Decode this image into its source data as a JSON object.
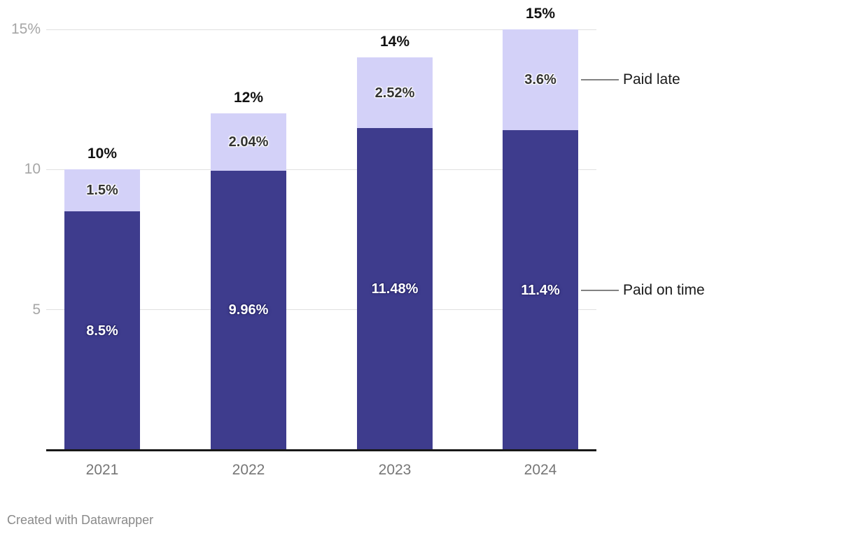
{
  "chart_data": {
    "type": "bar",
    "stacked": true,
    "title": "",
    "xlabel": "",
    "ylabel": "",
    "categories": [
      "2021",
      "2022",
      "2023",
      "2024"
    ],
    "series": [
      {
        "name": "Paid on time",
        "color": "#3E3C8D",
        "values": [
          8.5,
          9.96,
          11.48,
          11.4
        ],
        "labels": [
          "8.5%",
          "9.96%",
          "11.48%",
          "11.4%"
        ],
        "label_style": "on-dark"
      },
      {
        "name": "Paid late",
        "color": "#D3D1F8",
        "values": [
          1.5,
          2.04,
          2.52,
          3.6
        ],
        "labels": [
          "1.5%",
          "2.04%",
          "2.52%",
          "3.6%"
        ],
        "label_style": "on-light"
      }
    ],
    "totals": [
      "10%",
      "12%",
      "14%",
      "15%"
    ],
    "y_ticks": [
      {
        "value": 5,
        "label": "5"
      },
      {
        "value": 10,
        "label": "10"
      },
      {
        "value": 15,
        "label": "15%"
      }
    ],
    "ylim": [
      0,
      15
    ],
    "grid": true,
    "legend_position": "right-annotations",
    "annotations": [
      {
        "label": "Paid late",
        "series_index": 1
      },
      {
        "label": "Paid on time",
        "series_index": 0
      }
    ]
  },
  "colors": {
    "paid_on_time": "#3E3C8D",
    "paid_late": "#D3D1F8",
    "grid": "#E0E0E0",
    "axis": "#181818",
    "tick_text": "#A6A6A6",
    "x_label_text": "#767676",
    "total_text": "#111111",
    "annotation_line": "#828282",
    "annotation_text": "#1A1A1A",
    "credit_text": "#8A8A8A"
  },
  "footer": {
    "credit": "Created with Datawrapper"
  }
}
